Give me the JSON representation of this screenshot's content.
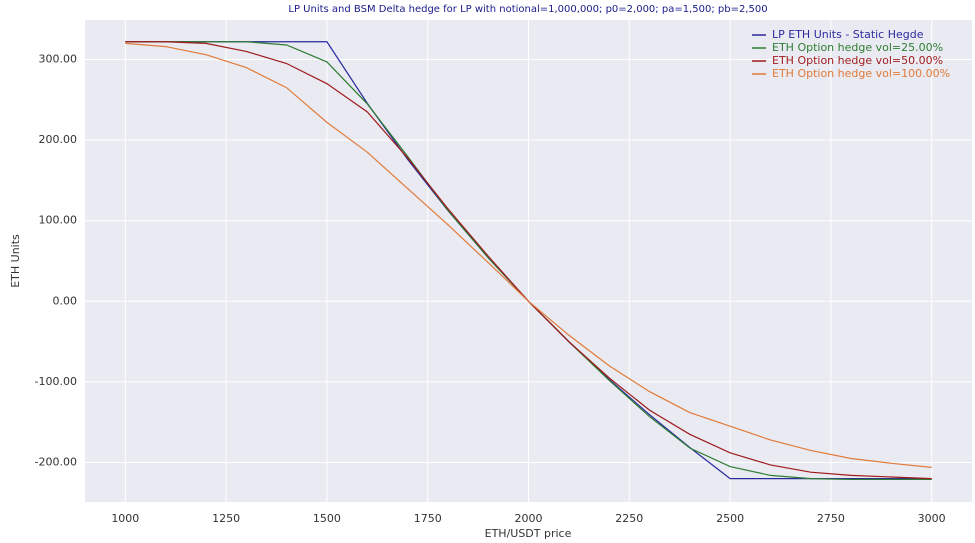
{
  "chart_data": {
    "type": "line",
    "title": "LP Units and BSM Delta hedge for LP with notional=1,000,000; p0=2,000; pa=1,500; pb=2,500",
    "x_label": "ETH/USDT price",
    "y_label": "ETH Units",
    "x": [
      1000,
      1100,
      1200,
      1300,
      1400,
      1500,
      1600,
      1700,
      1800,
      1900,
      2000,
      2100,
      2200,
      2300,
      2400,
      2500,
      2600,
      2700,
      2800,
      2900,
      3000
    ],
    "series": [
      {
        "name": "LP ETH Units - Static Hegde",
        "color": "#2b2b9e",
        "values": [
          322,
          322,
          322,
          322,
          322,
          322,
          245.7,
          176.2,
          112.6,
          54.1,
          0,
          -50.2,
          -96.9,
          -140.6,
          -181.4,
          -220,
          -220,
          -220,
          -220,
          -220,
          -220
        ]
      },
      {
        "name": "ETH Option hedge vol=25.00%",
        "color": "#2e7d32",
        "values": [
          322,
          322,
          322,
          322,
          318,
          297,
          245,
          180,
          113,
          54,
          0,
          -50,
          -98,
          -143,
          -182,
          -205,
          -216,
          -220,
          -221,
          -221,
          -221
        ]
      },
      {
        "name": "ETH Option hedge vol=50.00%",
        "color": "#9e1b1b",
        "values": [
          322,
          322,
          320,
          310,
          295,
          270,
          235,
          178,
          115,
          56,
          0,
          -50,
          -95,
          -135,
          -165,
          -188,
          -203,
          -212,
          -216,
          -218,
          -220
        ]
      },
      {
        "name": "ETH Option hedge vol=100.00%",
        "color": "#e07b39",
        "values": [
          320,
          316,
          306,
          290,
          265,
          222,
          185,
          140,
          95,
          48,
          0,
          -42,
          -80,
          -112,
          -138,
          -155,
          -172,
          -185,
          -195,
          -201,
          -206
        ]
      }
    ],
    "xlim": [
      900,
      3100
    ],
    "xticks": [
      1000,
      1250,
      1500,
      1750,
      2000,
      2250,
      2500,
      2750,
      3000
    ],
    "ylim": [
      -249,
      349
    ],
    "yticks": [
      {
        "value": -200,
        "label": "-200.00"
      },
      {
        "value": -100,
        "label": "-100.00"
      },
      {
        "value": 0,
        "label": "0.00"
      },
      {
        "value": 100,
        "label": "100.00"
      },
      {
        "value": 200,
        "label": "200.00"
      },
      {
        "value": 300,
        "label": "300.00"
      }
    ],
    "grid": true,
    "legend": "upper right",
    "title_color": "#1a1a8c"
  }
}
